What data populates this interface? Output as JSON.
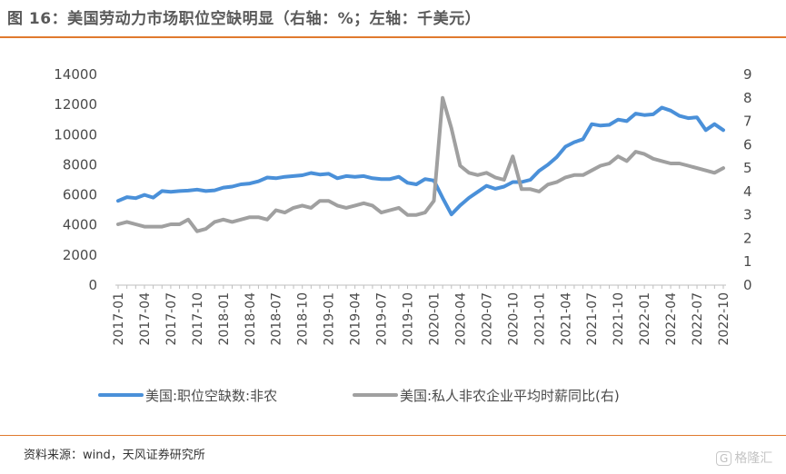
{
  "header": {
    "title": "图 16：美国劳动力市场职位空缺明显（右轴：%；左轴：千美元）"
  },
  "footer": {
    "source": "资料来源：wind，天风证券研究所",
    "watermark_badge": "G",
    "watermark_text": "格隆汇"
  },
  "chart_data": {
    "type": "line",
    "x_tick_labels": [
      "2017-01",
      "2017-04",
      "2017-07",
      "2017-10",
      "2018-01",
      "2018-04",
      "2018-07",
      "2018-10",
      "2019-01",
      "2019-04",
      "2019-07",
      "2019-10",
      "2020-01",
      "2020-04",
      "2020-07",
      "2020-10",
      "2021-01",
      "2021-04",
      "2021-07",
      "2021-10",
      "2022-01",
      "2022-04",
      "2022-07",
      "2022-10"
    ],
    "y_left": {
      "ticks": [
        "0",
        "2000",
        "4000",
        "6000",
        "8000",
        "10000",
        "12000",
        "14000"
      ],
      "min": 0,
      "max": 14000
    },
    "y_right": {
      "ticks": [
        "0",
        "1",
        "2",
        "3",
        "4",
        "5",
        "6",
        "7",
        "8",
        "9"
      ],
      "min": 0,
      "max": 9
    },
    "series": [
      {
        "name": "美国:职位空缺数:非农",
        "axis": "left",
        "color": "#4a90d9",
        "values": [
          5600,
          5850,
          5780,
          6000,
          5820,
          6250,
          6200,
          6250,
          6280,
          6350,
          6250,
          6300,
          6480,
          6550,
          6700,
          6750,
          6900,
          7150,
          7100,
          7200,
          7250,
          7300,
          7450,
          7350,
          7400,
          7100,
          7250,
          7200,
          7250,
          7100,
          7050,
          7050,
          7200,
          6800,
          6700,
          7050,
          6950,
          5800,
          4700,
          5300,
          5800,
          6200,
          6600,
          6400,
          6550,
          6850,
          6850,
          7000,
          7600,
          8000,
          8500,
          9200,
          9500,
          9700,
          10700,
          10600,
          10650,
          11000,
          10900,
          11400,
          11300,
          11350,
          11800,
          11600,
          11250,
          11100,
          11150,
          10300,
          10700,
          10300
        ]
      },
      {
        "name": "美国:私人非农企业平均时薪同比(右)",
        "axis": "right",
        "color": "#a0a0a0",
        "values": [
          2.6,
          2.7,
          2.6,
          2.5,
          2.5,
          2.5,
          2.6,
          2.6,
          2.8,
          2.3,
          2.4,
          2.7,
          2.8,
          2.7,
          2.8,
          2.9,
          2.9,
          2.8,
          3.2,
          3.1,
          3.3,
          3.4,
          3.3,
          3.6,
          3.6,
          3.4,
          3.3,
          3.4,
          3.5,
          3.4,
          3.1,
          3.2,
          3.3,
          3.0,
          3.0,
          3.1,
          3.6,
          8.0,
          6.7,
          5.1,
          4.8,
          4.7,
          4.8,
          4.6,
          4.5,
          5.5,
          4.1,
          4.1,
          4.0,
          4.3,
          4.4,
          4.6,
          4.7,
          4.7,
          4.9,
          5.1,
          5.2,
          5.5,
          5.3,
          5.7,
          5.6,
          5.4,
          5.3,
          5.2,
          5.2,
          5.1,
          5.0,
          4.9,
          4.8,
          5.0
        ]
      }
    ]
  }
}
